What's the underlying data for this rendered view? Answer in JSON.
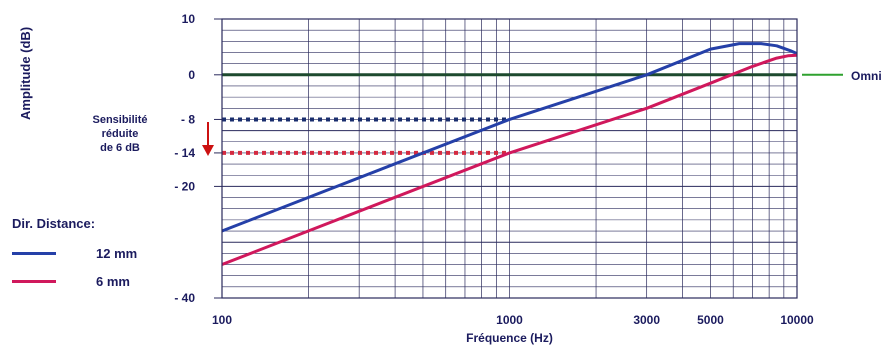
{
  "chart_data": {
    "type": "line",
    "xlabel": "Fréquence (Hz)",
    "ylabel": "Amplitude (dB)",
    "x_scale": "log",
    "xlim": [
      100,
      10000
    ],
    "ylim": [
      -40,
      10
    ],
    "x_ticks": [
      100,
      1000,
      3000,
      5000,
      10000
    ],
    "y_ticks": [
      {
        "value": 10,
        "label": "10"
      },
      {
        "value": 0,
        "label": "0"
      },
      {
        "value": -8,
        "label": "- 8"
      },
      {
        "value": -14,
        "label": "- 14"
      },
      {
        "value": -20,
        "label": "- 20"
      },
      {
        "value": -40,
        "label": "- 40"
      }
    ],
    "grid": true,
    "legend_title": "Dir. Distance:",
    "series": [
      {
        "name": "12 mm",
        "color": "#2540a8",
        "points": [
          [
            100,
            -28
          ],
          [
            1000,
            -8
          ],
          [
            3000,
            0
          ],
          [
            5000,
            4.6
          ],
          [
            6300,
            5.6
          ],
          [
            7500,
            5.6
          ],
          [
            8500,
            5.2
          ],
          [
            9500,
            4.3
          ],
          [
            10000,
            3.8
          ]
        ]
      },
      {
        "name": "6 mm",
        "color": "#d0185c",
        "points": [
          [
            100,
            -34
          ],
          [
            1000,
            -14
          ],
          [
            3000,
            -6
          ],
          [
            5000,
            -1.5
          ],
          [
            7000,
            1.5
          ],
          [
            8500,
            3.0
          ],
          [
            9300,
            3.4
          ],
          [
            10000,
            3.5
          ]
        ]
      }
    ],
    "reference_lines": [
      {
        "name": "Omni",
        "y": 0,
        "color": "#1d4a2e",
        "legend_color": "#2fa12f",
        "style": "solid"
      },
      {
        "y": -8,
        "x_end": 1000,
        "color": "#1a2e6e",
        "style": "dotted"
      },
      {
        "y": -14,
        "x_end": 1000,
        "color": "#d42a40",
        "style": "dotted"
      }
    ],
    "annotation": {
      "lines": [
        "Sensibilité",
        "réduite",
        "de 6 dB"
      ],
      "arrow_color": "#cc1111"
    }
  }
}
